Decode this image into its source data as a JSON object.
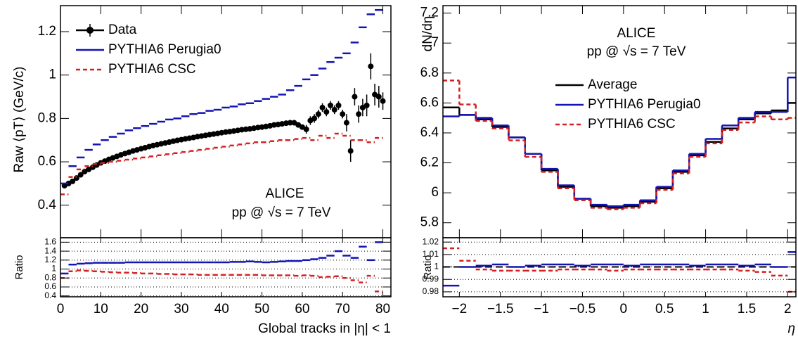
{
  "chart_data": [
    {
      "type": "histogram",
      "ylabel": "Raw ⟨pT⟩ (GeV/c)",
      "text": [
        "ALICE",
        "pp @ √s = 7 TeV"
      ],
      "legend": "upper left",
      "xlim": [
        0,
        82
      ],
      "ylim": [
        0.25,
        1.32
      ],
      "yticks": [
        0.4,
        0.6,
        0.8,
        1,
        1.2
      ],
      "series": [
        {
          "name": "Data",
          "color": "#000000",
          "x": [
            1,
            2,
            3,
            4,
            5,
            6,
            7,
            8,
            9,
            10,
            11,
            12,
            13,
            14,
            15,
            16,
            17,
            18,
            19,
            20,
            21,
            22,
            23,
            24,
            25,
            26,
            27,
            28,
            29,
            30,
            31,
            32,
            33,
            34,
            35,
            36,
            37,
            38,
            39,
            40,
            41,
            42,
            43,
            44,
            45,
            46,
            47,
            48,
            49,
            50,
            51,
            52,
            53,
            54,
            55,
            56,
            57,
            58,
            59,
            60,
            61,
            62,
            63,
            64,
            65,
            66,
            67,
            68,
            69,
            70,
            71,
            72,
            73,
            74,
            75,
            76,
            77,
            78,
            79,
            80
          ],
          "values": [
            0.49,
            0.5,
            0.51,
            0.525,
            0.54,
            0.555,
            0.565,
            0.575,
            0.585,
            0.595,
            0.603,
            0.611,
            0.618,
            0.625,
            0.632,
            0.638,
            0.644,
            0.65,
            0.655,
            0.66,
            0.665,
            0.67,
            0.675,
            0.679,
            0.683,
            0.687,
            0.691,
            0.695,
            0.699,
            0.702,
            0.706,
            0.709,
            0.712,
            0.716,
            0.719,
            0.722,
            0.725,
            0.728,
            0.731,
            0.734,
            0.737,
            0.739,
            0.742,
            0.745,
            0.748,
            0.75,
            0.752,
            0.755,
            0.758,
            0.76,
            0.763,
            0.766,
            0.77,
            0.772,
            0.775,
            0.778,
            0.78,
            0.78,
            0.77,
            0.76,
            0.75,
            0.79,
            0.8,
            0.82,
            0.85,
            0.83,
            0.86,
            0.84,
            0.86,
            0.82,
            0.78,
            0.65,
            0.9,
            0.82,
            0.85,
            0.86,
            1.04,
            0.91,
            0.9,
            0.88
          ],
          "errors": [
            0.005,
            0.005,
            0.005,
            0.005,
            0.005,
            0.005,
            0.005,
            0.005,
            0.005,
            0.005,
            0.005,
            0.005,
            0.005,
            0.005,
            0.005,
            0.005,
            0.005,
            0.005,
            0.005,
            0.005,
            0.005,
            0.005,
            0.005,
            0.005,
            0.005,
            0.005,
            0.005,
            0.005,
            0.005,
            0.005,
            0.005,
            0.005,
            0.005,
            0.005,
            0.005,
            0.005,
            0.005,
            0.005,
            0.005,
            0.005,
            0.005,
            0.005,
            0.005,
            0.005,
            0.005,
            0.005,
            0.005,
            0.005,
            0.005,
            0.005,
            0.01,
            0.01,
            0.01,
            0.01,
            0.01,
            0.01,
            0.01,
            0.01,
            0.01,
            0.01,
            0.02,
            0.02,
            0.02,
            0.02,
            0.02,
            0.02,
            0.02,
            0.02,
            0.02,
            0.02,
            0.04,
            0.05,
            0.04,
            0.04,
            0.04,
            0.05,
            0.06,
            0.05,
            0.05,
            0.04
          ]
        },
        {
          "name": "PYTHIA6 Perugia0",
          "color": "#1414b4",
          "bins": [
            0,
            2,
            4,
            6,
            8,
            10,
            12,
            14,
            16,
            18,
            20,
            22,
            24,
            26,
            28,
            30,
            32,
            34,
            36,
            38,
            40,
            42,
            44,
            46,
            48,
            50,
            52,
            54,
            56,
            58,
            60,
            62,
            64,
            66,
            68,
            70,
            72,
            74,
            76,
            78,
            80
          ],
          "values": [
            0.5,
            0.58,
            0.62,
            0.655,
            0.68,
            0.7,
            0.715,
            0.73,
            0.745,
            0.755,
            0.765,
            0.775,
            0.785,
            0.795,
            0.8,
            0.81,
            0.82,
            0.825,
            0.835,
            0.84,
            0.85,
            0.855,
            0.865,
            0.87,
            0.88,
            0.89,
            0.9,
            0.91,
            0.93,
            0.95,
            0.98,
            1.0,
            1.03,
            1.06,
            1.08,
            1.1,
            1.15,
            1.22,
            1.28,
            1.3
          ]
        },
        {
          "name": "PYTHIA6 CSC",
          "color": "#d42020",
          "dashed": true,
          "bins": [
            0,
            2,
            4,
            6,
            8,
            10,
            12,
            14,
            16,
            18,
            20,
            22,
            24,
            26,
            28,
            30,
            32,
            34,
            36,
            38,
            40,
            42,
            44,
            46,
            48,
            50,
            52,
            54,
            56,
            58,
            60,
            62,
            64,
            66,
            68,
            70,
            72,
            74,
            76,
            78,
            80
          ],
          "values": [
            0.45,
            0.53,
            0.565,
            0.58,
            0.59,
            0.595,
            0.6,
            0.605,
            0.61,
            0.615,
            0.62,
            0.625,
            0.63,
            0.635,
            0.64,
            0.645,
            0.65,
            0.655,
            0.66,
            0.665,
            0.67,
            0.675,
            0.68,
            0.685,
            0.69,
            0.69,
            0.695,
            0.7,
            0.7,
            0.705,
            0.71,
            0.7,
            0.72,
            0.71,
            0.73,
            0.72,
            0.7,
            0.7,
            0.69,
            0.71
          ]
        }
      ]
    },
    {
      "type": "histogram",
      "ylabel": "Ratio",
      "xlabel": "Global tracks in |η| < 1",
      "grid": true,
      "xlim": [
        0,
        82
      ],
      "ylim": [
        0.38,
        1.7
      ],
      "xticks": [
        0,
        10,
        20,
        30,
        40,
        50,
        60,
        70,
        80
      ],
      "yticks": [
        0.4,
        0.6,
        0.8,
        1,
        1.2,
        1.4,
        1.6
      ],
      "series": [
        {
          "color": "#1414b4",
          "bins": [
            0,
            2,
            4,
            6,
            8,
            10,
            12,
            14,
            16,
            18,
            20,
            22,
            24,
            26,
            28,
            30,
            32,
            34,
            36,
            38,
            40,
            42,
            44,
            46,
            48,
            50,
            52,
            54,
            56,
            58,
            60,
            62,
            64,
            66,
            68,
            70,
            72,
            74,
            76,
            78,
            80
          ],
          "values": [
            0.9,
            1.1,
            1.12,
            1.13,
            1.14,
            1.14,
            1.14,
            1.14,
            1.15,
            1.15,
            1.15,
            1.15,
            1.15,
            1.15,
            1.15,
            1.15,
            1.15,
            1.15,
            1.15,
            1.15,
            1.15,
            1.16,
            1.16,
            1.17,
            1.16,
            1.15,
            1.16,
            1.17,
            1.18,
            1.18,
            1.2,
            1.22,
            1.25,
            1.3,
            1.4,
            1.3,
            1.25,
            1.5,
            1.2,
            1.6
          ]
        },
        {
          "color": "#d42020",
          "dashed": true,
          "bins": [
            0,
            2,
            4,
            6,
            8,
            10,
            12,
            14,
            16,
            18,
            20,
            22,
            24,
            26,
            28,
            30,
            32,
            34,
            36,
            38,
            40,
            42,
            44,
            46,
            48,
            50,
            52,
            54,
            56,
            58,
            60,
            62,
            64,
            66,
            68,
            70,
            72,
            74,
            76,
            78,
            80
          ],
          "values": [
            0.8,
            0.95,
            0.97,
            0.96,
            0.95,
            0.94,
            0.93,
            0.92,
            0.92,
            0.91,
            0.9,
            0.9,
            0.89,
            0.89,
            0.88,
            0.88,
            0.88,
            0.87,
            0.87,
            0.87,
            0.87,
            0.87,
            0.87,
            0.87,
            0.87,
            0.86,
            0.86,
            0.86,
            0.86,
            0.85,
            0.86,
            0.85,
            0.82,
            0.83,
            0.84,
            0.8,
            0.75,
            0.7,
            0.85,
            0.5
          ]
        }
      ]
    },
    {
      "type": "histogram",
      "ylabel": "dN/dη",
      "text": [
        "ALICE",
        "pp @ √s = 7 TeV"
      ],
      "legend": "center",
      "connect": true,
      "xlim": [
        -2.2,
        2.1
      ],
      "ylim": [
        5.7,
        7.25
      ],
      "yticks": [
        5.8,
        6,
        6.2,
        6.4,
        6.6,
        6.8,
        7,
        7.2
      ],
      "series": [
        {
          "name": "Average",
          "color": "#000000",
          "bins": [
            -2.2,
            -2.0,
            -1.8,
            -1.6,
            -1.4,
            -1.2,
            -1.0,
            -0.8,
            -0.6,
            -0.4,
            -0.2,
            0,
            0.2,
            0.4,
            0.6,
            0.8,
            1.0,
            1.2,
            1.4,
            1.6,
            1.8,
            2.0,
            2.1
          ],
          "values": [
            6.57,
            6.52,
            6.49,
            6.44,
            6.37,
            6.26,
            6.15,
            6.04,
            5.96,
            5.91,
            5.9,
            5.91,
            5.94,
            6.03,
            6.14,
            6.25,
            6.34,
            6.43,
            6.49,
            6.53,
            6.55,
            6.6
          ]
        },
        {
          "name": "PYTHIA6 Perugia0",
          "color": "#1414b4",
          "bins": [
            -2.2,
            -2.0,
            -1.8,
            -1.6,
            -1.4,
            -1.2,
            -1.0,
            -0.8,
            -0.6,
            -0.4,
            -0.2,
            0,
            0.2,
            0.4,
            0.6,
            0.8,
            1.0,
            1.2,
            1.4,
            1.6,
            1.8,
            2.0,
            2.1
          ],
          "values": [
            6.51,
            6.52,
            6.5,
            6.45,
            6.37,
            6.26,
            6.16,
            6.05,
            5.96,
            5.92,
            5.91,
            5.92,
            5.95,
            6.04,
            6.15,
            6.26,
            6.36,
            6.45,
            6.5,
            6.54,
            6.54,
            6.77
          ]
        },
        {
          "name": "PYTHIA6 CSC",
          "color": "#d42020",
          "dashed": true,
          "bins": [
            -2.2,
            -2.0,
            -1.8,
            -1.6,
            -1.4,
            -1.2,
            -1.0,
            -0.8,
            -0.6,
            -0.4,
            -0.2,
            0,
            0.2,
            0.4,
            0.6,
            0.8,
            1.0,
            1.2,
            1.4,
            1.6,
            1.8,
            2.0,
            2.1
          ],
          "values": [
            6.75,
            6.59,
            6.48,
            6.43,
            6.35,
            6.24,
            6.14,
            6.03,
            5.95,
            5.9,
            5.89,
            5.9,
            5.93,
            6.02,
            6.13,
            6.24,
            6.33,
            6.42,
            6.47,
            6.51,
            6.49,
            6.5
          ]
        }
      ]
    },
    {
      "type": "histogram",
      "ylabel": "Ratio",
      "xlabel": "η",
      "grid": true,
      "ref_line": 1,
      "xlim": [
        -2.2,
        2.1
      ],
      "ylim": [
        0.976,
        1.0235
      ],
      "xticks": [
        {
          "value": -2,
          "label": "−2"
        },
        {
          "value": -1.5,
          "label": "−1.5"
        },
        {
          "value": -1,
          "label": "−1"
        },
        {
          "value": -0.5,
          "label": "−0.5"
        },
        0,
        0.5,
        1,
        1.5,
        2
      ],
      "yticks": [
        0.98,
        0.99,
        1,
        1.01,
        1.02
      ],
      "series": [
        {
          "color": "#1414b4",
          "bins": [
            -2.2,
            -2.0,
            -1.8,
            -1.6,
            -1.4,
            -1.2,
            -1.0,
            -0.8,
            -0.6,
            -0.4,
            -0.2,
            0,
            0.2,
            0.4,
            0.6,
            0.8,
            1.0,
            1.2,
            1.4,
            1.6,
            1.8,
            2.0,
            2.1
          ],
          "values": [
            0.985,
            1.0,
            1.001,
            1.002,
            1.0,
            1.001,
            1.002,
            1.002,
            1.001,
            1.002,
            1.002,
            1.001,
            1.002,
            1.002,
            1.002,
            1.001,
            1.002,
            1.002,
            1.001,
            1.002,
            1.0,
            1.012
          ]
        },
        {
          "color": "#d42020",
          "dashed": true,
          "bins": [
            -2.2,
            -2.0,
            -1.8,
            -1.6,
            -1.4,
            -1.2,
            -1.0,
            -0.8,
            -0.6,
            -0.4,
            -0.2,
            0,
            0.2,
            0.4,
            0.6,
            0.8,
            1.0,
            1.2,
            1.4,
            1.6,
            1.8,
            2.0,
            2.1
          ],
          "values": [
            1.015,
            1.005,
            0.998,
            0.997,
            0.997,
            0.997,
            0.997,
            0.998,
            0.998,
            0.998,
            0.997,
            0.998,
            0.998,
            0.998,
            0.998,
            0.998,
            0.998,
            0.998,
            0.997,
            0.996,
            0.993,
            0.98
          ]
        }
      ]
    }
  ]
}
